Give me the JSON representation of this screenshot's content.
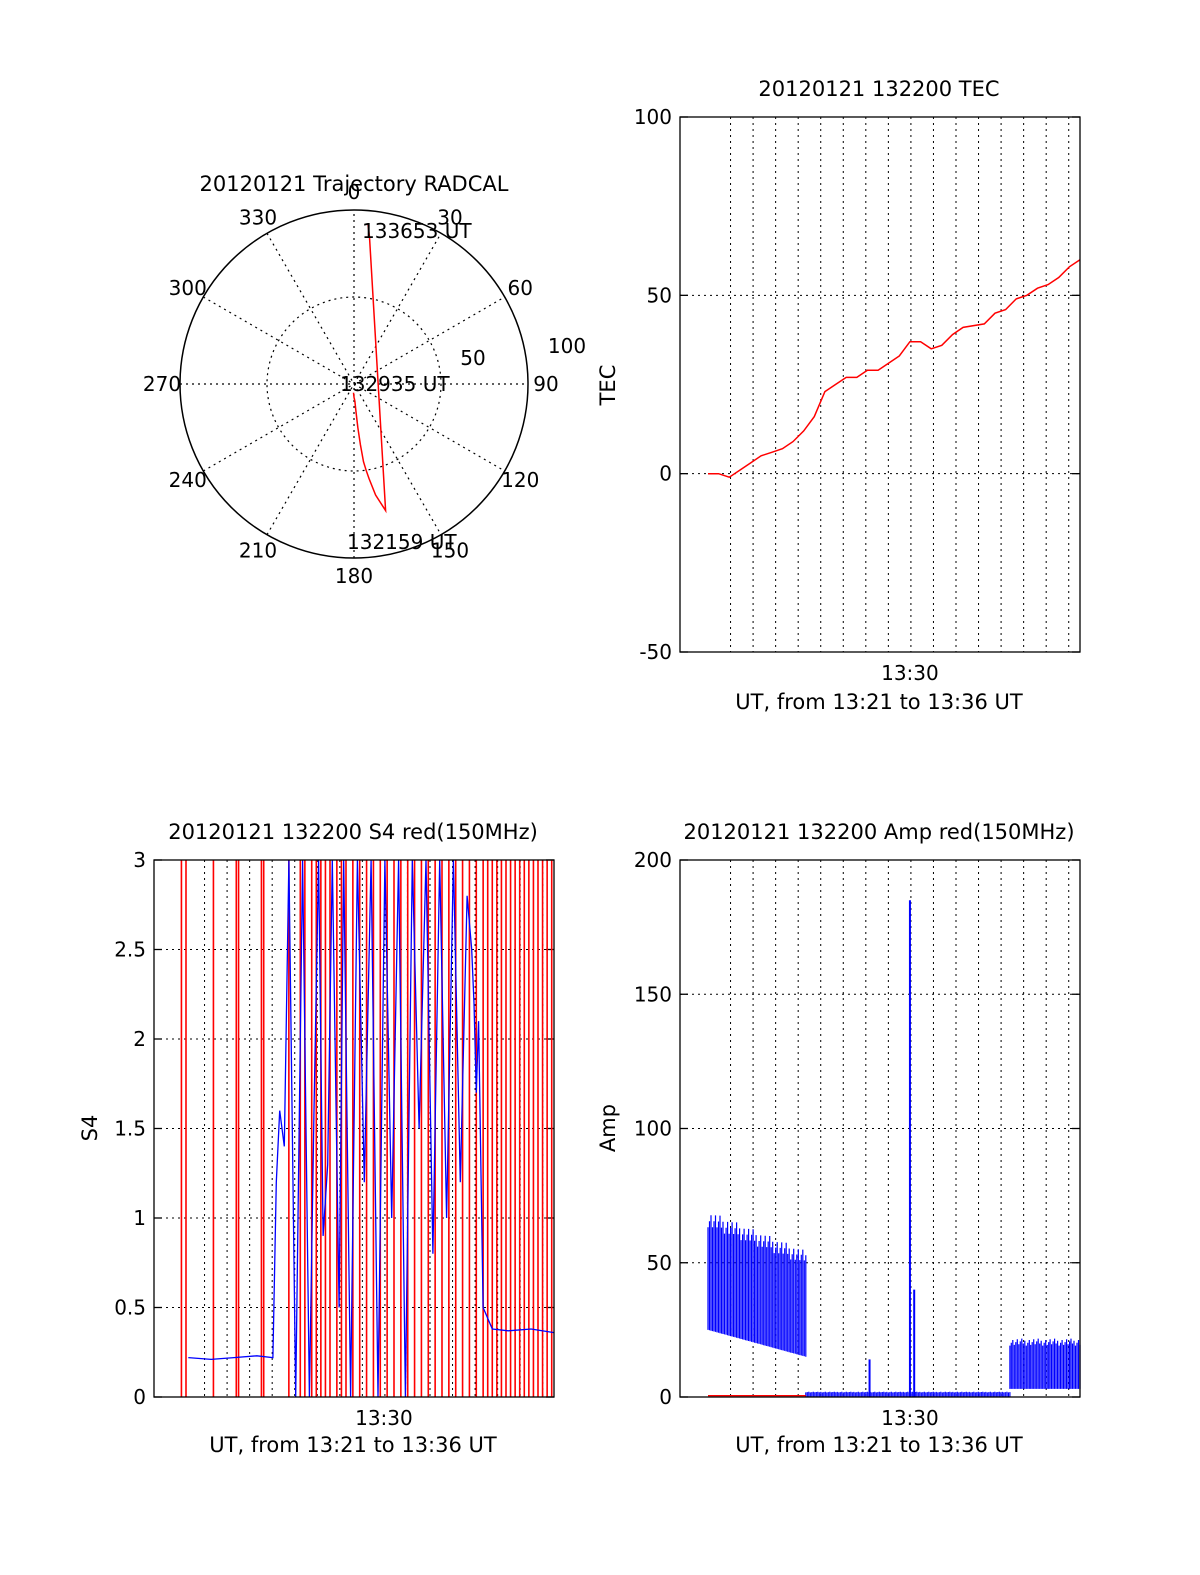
{
  "colors": {
    "red": "#ff0000",
    "blue": "#0000ff",
    "axis": "#000000",
    "grid": "#000000"
  },
  "chart_data": [
    {
      "id": "trajectory",
      "type": "polar",
      "title": "20120121 Trajectory RADCAL",
      "angle_labels": [
        "0",
        "30",
        "60",
        "90",
        "120",
        "150",
        "180",
        "210",
        "240",
        "270",
        "300",
        "330"
      ],
      "radial_labels": [
        "50",
        "100"
      ],
      "rlim": [
        0,
        100
      ],
      "grid": true,
      "track": {
        "color": "red",
        "points": [
          [
            5,
            183
          ],
          [
            7.5,
            180
          ],
          [
            10,
            177
          ],
          [
            15,
            176
          ],
          [
            25,
            175
          ],
          [
            35,
            174
          ],
          [
            45,
            173
          ],
          [
            50,
            172
          ],
          [
            55,
            171
          ],
          [
            65,
            169
          ],
          [
            75,
            166
          ],
          [
            85,
            6
          ],
          [
            92,
            5
          ]
        ]
      },
      "annotations": [
        {
          "text": "133653 UT",
          "r": 92,
          "theta": 5
        },
        {
          "text": "132935 UT",
          "r": 1,
          "theta": 0
        },
        {
          "text": "132159 UT",
          "r": 92,
          "theta": 175
        }
      ]
    },
    {
      "id": "tec",
      "type": "line",
      "title": "20120121 132200 TEC",
      "xlabel": "UT, from 13:21 to 13:36 UT",
      "ylabel": "TEC",
      "ylim": [
        -50,
        100
      ],
      "yticks": [
        "100",
        "50",
        "0",
        "-50"
      ],
      "xtick_labels": [
        {
          "x": 9.5,
          "label": "13:30"
        }
      ],
      "xlim": [
        0,
        17.5
      ],
      "grid": true,
      "series": [
        {
          "color": "red",
          "points": [
            [
              0,
              0
            ],
            [
              0.5,
              0
            ],
            [
              1,
              -1
            ],
            [
              1.5,
              1
            ],
            [
              2,
              3
            ],
            [
              2.5,
              5
            ],
            [
              3,
              6
            ],
            [
              3.5,
              7
            ],
            [
              4,
              9
            ],
            [
              4.5,
              12
            ],
            [
              5,
              16
            ],
            [
              5.5,
              23
            ],
            [
              6,
              25
            ],
            [
              6.5,
              27
            ],
            [
              7,
              27
            ],
            [
              7.5,
              29
            ],
            [
              8,
              29
            ],
            [
              8.5,
              31
            ],
            [
              9,
              33
            ],
            [
              9.5,
              37
            ],
            [
              10,
              37
            ],
            [
              10.5,
              35
            ],
            [
              11,
              36
            ],
            [
              11.5,
              39
            ],
            [
              12,
              41
            ],
            [
              13,
              42
            ],
            [
              13.5,
              45
            ],
            [
              14,
              46
            ],
            [
              14.5,
              49
            ],
            [
              15,
              50
            ],
            [
              15.5,
              52
            ],
            [
              16,
              53
            ],
            [
              16.5,
              55
            ],
            [
              17,
              58
            ],
            [
              17.5,
              60
            ]
          ]
        }
      ]
    },
    {
      "id": "s4",
      "type": "line",
      "title": "20120121 132200 S4 red(150MHz)",
      "xlabel": "UT, from 13:21 to 13:36 UT",
      "ylabel": "S4",
      "ylim": [
        0,
        3
      ],
      "yticks": [
        "3",
        "2.5",
        "2",
        "1.5",
        "1",
        "0.5",
        "0"
      ],
      "xtick_labels": [
        {
          "x": 9.5,
          "label": "13:30"
        }
      ],
      "xlim": [
        0,
        17.5
      ],
      "grid": true,
      "series": [
        {
          "color": "blue",
          "points": [
            [
              1.5,
              0.22
            ],
            [
              2.5,
              0.21
            ],
            [
              3.5,
              0.22
            ],
            [
              4.5,
              0.23
            ],
            [
              5.2,
              0.22
            ],
            [
              5.35,
              1.2
            ],
            [
              5.5,
              1.6
            ],
            [
              5.7,
              1.4
            ],
            [
              5.9,
              3
            ],
            [
              6.2,
              0
            ],
            [
              6.5,
              3
            ],
            [
              6.8,
              0
            ],
            [
              7.0,
              1.6
            ],
            [
              7.2,
              3
            ],
            [
              7.4,
              0.9
            ],
            [
              7.6,
              1.3
            ],
            [
              7.8,
              3
            ],
            [
              8.1,
              0.5
            ],
            [
              8.3,
              3
            ],
            [
              8.6,
              0
            ],
            [
              8.9,
              3
            ],
            [
              9.2,
              1.2
            ],
            [
              9.5,
              3
            ],
            [
              9.8,
              0
            ],
            [
              10.1,
              3
            ],
            [
              10.4,
              1.0
            ],
            [
              10.7,
              3
            ],
            [
              11.0,
              0
            ],
            [
              11.3,
              3
            ],
            [
              11.6,
              1.5
            ],
            [
              11.9,
              3
            ],
            [
              12.2,
              0.8
            ],
            [
              12.5,
              3
            ],
            [
              12.8,
              1.0
            ],
            [
              13.1,
              3
            ],
            [
              13.4,
              1.2
            ],
            [
              13.7,
              2.8
            ],
            [
              13.9,
              2.5
            ],
            [
              14.0,
              2.2
            ],
            [
              14.1,
              1.7
            ],
            [
              14.2,
              2.1
            ],
            [
              14.4,
              0.5
            ],
            [
              14.8,
              0.38
            ],
            [
              15.5,
              0.37
            ],
            [
              16.5,
              0.38
            ],
            [
              17.5,
              0.36
            ]
          ]
        },
        {
          "color": "red",
          "spikes_x": [
            1.2,
            1.4,
            2.6,
            3.6,
            3.7,
            4.7,
            4.8,
            5.9,
            6.4,
            6.6,
            6.9,
            7.1,
            7.3,
            7.5,
            7.7,
            8.0,
            8.2,
            8.4,
            8.7,
            9.0,
            9.3,
            9.6,
            9.9,
            10.2,
            10.5,
            10.8,
            11.1,
            11.4,
            11.7,
            12.0,
            12.3,
            12.6,
            12.9,
            13.2,
            13.5,
            13.8,
            14.1,
            14.4,
            14.6,
            14.8,
            15.0,
            15.2,
            15.4,
            15.6,
            15.8,
            16.0,
            16.2,
            16.4,
            16.6,
            16.8,
            17.0,
            17.2,
            17.4
          ]
        }
      ]
    },
    {
      "id": "amp",
      "type": "line",
      "title": "20120121 132200 Amp red(150MHz)",
      "xlabel": "UT, from 13:21 to 13:36 UT",
      "ylabel": "Amp",
      "ylim": [
        0,
        200
      ],
      "yticks": [
        "200",
        "150",
        "100",
        "50",
        "0"
      ],
      "xtick_labels": [
        {
          "x": 9.5,
          "label": "13:30"
        }
      ],
      "xlim": [
        0,
        17.5
      ],
      "grid": true,
      "series": [
        {
          "color": "blue",
          "segments": [
            {
              "x0": 0,
              "x1": 4.6,
              "upper_start": 70,
              "upper_end": 55,
              "lower_start": 25,
              "lower_end": 15
            },
            {
              "x0": 4.6,
              "x1": 14.2,
              "upper_start": 2,
              "upper_end": 2,
              "lower_start": 0,
              "lower_end": 0
            },
            {
              "x0": 14.2,
              "x1": 17.5,
              "upper_start": 22,
              "upper_end": 22,
              "lower_start": 3,
              "lower_end": 3
            }
          ],
          "peaks": [
            [
              7.6,
              14
            ],
            [
              9.5,
              185
            ],
            [
              9.7,
              40
            ]
          ]
        },
        {
          "color": "red",
          "baseline": 0.5
        }
      ]
    }
  ]
}
